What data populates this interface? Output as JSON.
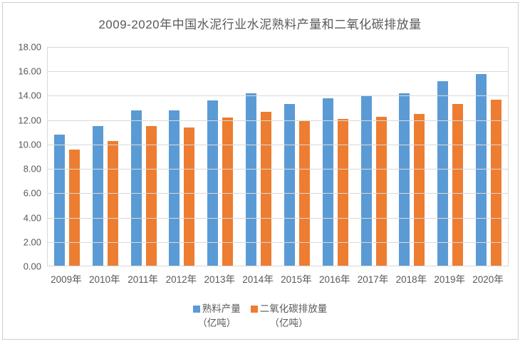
{
  "colors": {
    "series_blue": "#5B9BD5",
    "series_orange": "#ED7D31",
    "gridline": "#D9D9D9",
    "axis_text": "#595959",
    "title_text": "#595959",
    "frame_border": "#CDCDCD",
    "background": "#FFFFFF"
  },
  "chart_data": {
    "type": "bar",
    "title": "2009-2020年中国水泥行业水泥熟料产量和二氧化碳排放量",
    "xlabel": "",
    "ylabel": "",
    "categories": [
      "2009年",
      "2010年",
      "2011年",
      "2012年",
      "2013年",
      "2014年",
      "2015年",
      "2016年",
      "2017年",
      "2018年",
      "2019年",
      "2020年"
    ],
    "series": [
      {
        "name": "熟料产量（亿吨）",
        "legend_lines": [
          "熟料产量",
          "（亿吨）"
        ],
        "color": "#5B9BD5",
        "values": [
          10.8,
          11.5,
          12.8,
          12.8,
          13.6,
          14.2,
          13.3,
          13.8,
          14.0,
          14.2,
          15.2,
          15.8
        ]
      },
      {
        "name": "二氧化碳排放量（亿吨）",
        "legend_lines": [
          "二氧化碳排放量",
          "（亿吨）"
        ],
        "color": "#ED7D31",
        "values": [
          9.6,
          10.3,
          11.5,
          11.4,
          12.2,
          12.7,
          12.0,
          12.1,
          12.3,
          12.5,
          13.3,
          13.7
        ]
      }
    ],
    "y_axis": {
      "min": 0,
      "max": 18,
      "step": 2,
      "tick_labels": [
        "18.00",
        "16.00",
        "14.00",
        "12.00",
        "10.00",
        "8.00",
        "6.00",
        "4.00",
        "2.00",
        "0.00"
      ]
    },
    "grid": true,
    "legend_position": "bottom"
  }
}
